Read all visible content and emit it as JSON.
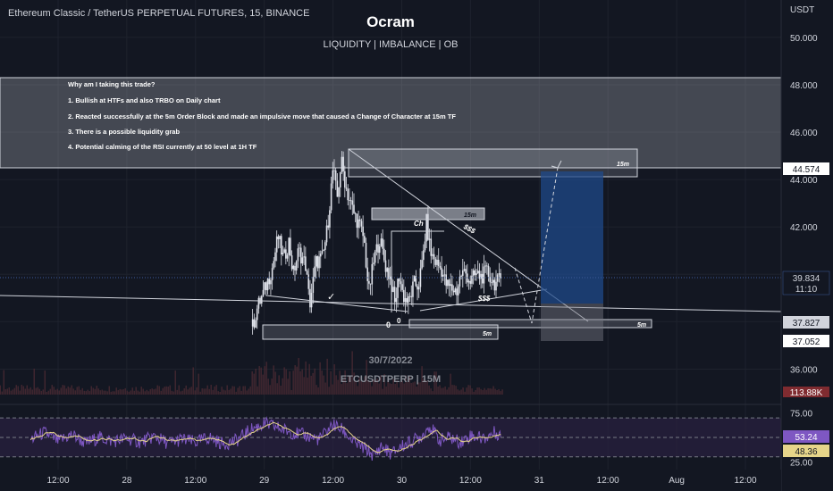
{
  "header": {
    "symbol_line": "Ethereum Classic / TetherUS PERPETUAL FUTURES, 15, BINANCE",
    "author": "Ocram",
    "subtitle": "LIQUIDITY | IMBALANCE | OB",
    "currency": "USDT"
  },
  "notes": {
    "heading": "Why am I taking this trade?",
    "items": [
      "1. Bullish at HTFs and also TRBO on Daily chart",
      "2. Reacted successfully at the 5m Order Block and made an impulsive move that caused a Change of Character at 15m TF",
      "3. There is a possible liquidity grab",
      "4. Potential calming of the RSI currently at 50 level at 1H TF"
    ]
  },
  "watermark": {
    "date": "30/7/2022",
    "ticker": "ETCUSDTPERP | 15M"
  },
  "annotations": {
    "zone_15m_top": "15m",
    "zone_15m_mid": "15m",
    "zone_5m_left": "5m",
    "zone_5m_right": "5m",
    "choch": "Ch",
    "liq_upper": "$$$",
    "liq_lower": "$$$",
    "check": "✓"
  },
  "badges": {
    "level_top": "44.574",
    "price_current": "39.834",
    "countdown": "11:10",
    "level_mid": "37.827",
    "level_low": "37.052",
    "volume": "113.88K",
    "rsi": "53.24",
    "rsi_ma": "48.36"
  },
  "colors": {
    "background": "#131722",
    "text": "#d1d4dc",
    "candle": "#e0e3eb",
    "volume": "#4a2a33",
    "rsi_line": "#7e57c2",
    "rsi_ma": "#e6d58a",
    "rsi_band": "#2a2140",
    "target_box": "#1f4a8a",
    "badge_dark": "#d1d4dc",
    "volume_badge": "#7f2b30"
  },
  "chart_data": {
    "type": "candlestick",
    "price_axis": {
      "ylim": [
        35.0,
        51.2
      ],
      "ticks": [
        "50.000",
        "48.000",
        "46.000",
        "44.000",
        "42.000",
        "40.000",
        "38.000",
        "36.000"
      ],
      "tick_values": [
        50,
        48,
        46,
        44,
        42,
        40,
        38,
        36
      ]
    },
    "rsi_axis": {
      "ylim": [
        17,
        82
      ],
      "ticks": [
        "75.00",
        "50.00",
        "25.00"
      ],
      "tick_values": [
        75,
        50,
        25
      ],
      "band": [
        30,
        70
      ]
    },
    "time_axis": {
      "labels": [
        "12:00",
        "28",
        "12:00",
        "29",
        "12:00",
        "30",
        "12:00",
        "31",
        "12:00",
        "Aug",
        "12:00"
      ],
      "positions": [
        0,
        1,
        2,
        3,
        4,
        5,
        6,
        7,
        8,
        9,
        10
      ]
    },
    "price_path": [
      [
        2.83,
        37.8
      ],
      [
        2.9,
        38.6
      ],
      [
        3.0,
        39.3
      ],
      [
        3.12,
        40.3
      ],
      [
        3.2,
        41.6
      ],
      [
        3.28,
        40.6
      ],
      [
        3.36,
        41.4
      ],
      [
        3.42,
        40.0
      ],
      [
        3.5,
        41.0
      ],
      [
        3.6,
        40.4
      ],
      [
        3.66,
        38.7
      ],
      [
        3.75,
        40.5
      ],
      [
        3.85,
        40.7
      ],
      [
        3.92,
        42.0
      ],
      [
        4.0,
        44.5
      ],
      [
        4.06,
        43.2
      ],
      [
        4.12,
        44.8
      ],
      [
        4.2,
        43.5
      ],
      [
        4.3,
        42.6
      ],
      [
        4.38,
        42.1
      ],
      [
        4.45,
        41.5
      ],
      [
        4.52,
        39.2
      ],
      [
        4.6,
        40.7
      ],
      [
        4.68,
        41.5
      ],
      [
        4.76,
        40.4
      ],
      [
        4.84,
        39.8
      ],
      [
        4.9,
        38.7
      ],
      [
        4.96,
        40.0
      ],
      [
        5.02,
        39.1
      ],
      [
        5.1,
        38.8
      ],
      [
        5.18,
        39.6
      ],
      [
        5.24,
        39.5
      ],
      [
        5.3,
        40.5
      ],
      [
        5.36,
        42.2
      ],
      [
        5.42,
        40.9
      ],
      [
        5.5,
        40.5
      ],
      [
        5.58,
        40.2
      ],
      [
        5.64,
        39.6
      ],
      [
        5.72,
        39.4
      ],
      [
        5.8,
        39.3
      ],
      [
        5.86,
        40.0
      ],
      [
        5.92,
        40.1
      ],
      [
        6.0,
        39.7
      ],
      [
        6.08,
        40.0
      ],
      [
        6.16,
        39.9
      ],
      [
        6.24,
        40.1
      ],
      [
        6.32,
        39.7
      ],
      [
        6.38,
        39.6
      ],
      [
        6.44,
        39.85
      ]
    ],
    "rsi_path": [
      [
        -0.4,
        48
      ],
      [
        -0.2,
        55
      ],
      [
        0.0,
        46
      ],
      [
        0.2,
        53
      ],
      [
        0.4,
        44
      ],
      [
        0.6,
        50
      ],
      [
        0.8,
        46
      ],
      [
        1.0,
        49
      ],
      [
        1.2,
        45
      ],
      [
        1.4,
        51
      ],
      [
        1.6,
        44
      ],
      [
        1.8,
        48
      ],
      [
        2.0,
        45
      ],
      [
        2.2,
        50
      ],
      [
        2.4,
        43
      ],
      [
        2.6,
        47
      ],
      [
        2.8,
        58
      ],
      [
        3.0,
        64
      ],
      [
        3.2,
        60
      ],
      [
        3.4,
        55
      ],
      [
        3.6,
        52
      ],
      [
        3.8,
        48
      ],
      [
        4.0,
        63
      ],
      [
        4.15,
        57
      ],
      [
        4.3,
        45
      ],
      [
        4.5,
        37
      ],
      [
        4.6,
        31
      ],
      [
        4.7,
        41
      ],
      [
        4.85,
        33
      ],
      [
        5.0,
        41
      ],
      [
        5.15,
        46
      ],
      [
        5.3,
        52
      ],
      [
        5.4,
        62
      ],
      [
        5.55,
        47
      ],
      [
        5.7,
        50
      ],
      [
        5.85,
        45
      ],
      [
        6.0,
        52
      ],
      [
        6.2,
        49
      ],
      [
        6.35,
        55
      ],
      [
        6.44,
        53
      ]
    ]
  }
}
